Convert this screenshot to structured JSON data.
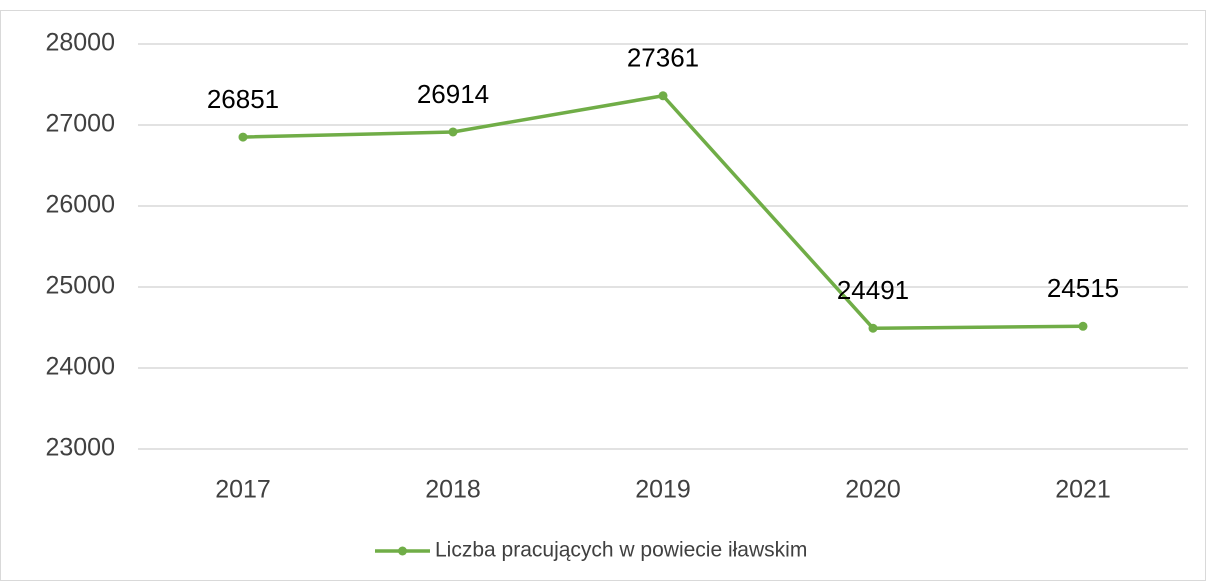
{
  "chart_data": {
    "type": "line",
    "categories": [
      "2017",
      "2018",
      "2019",
      "2020",
      "2021"
    ],
    "series": [
      {
        "name": "Liczba pracujących w powiecie iławskim",
        "color": "#70ad47",
        "values": [
          26851,
          26914,
          27361,
          24491,
          24515
        ]
      }
    ],
    "ylim": [
      23000,
      28000
    ],
    "yticks": [
      23000,
      24000,
      25000,
      26000,
      27000,
      28000
    ],
    "grid": true,
    "legend": "bottom",
    "data_labels": true
  }
}
